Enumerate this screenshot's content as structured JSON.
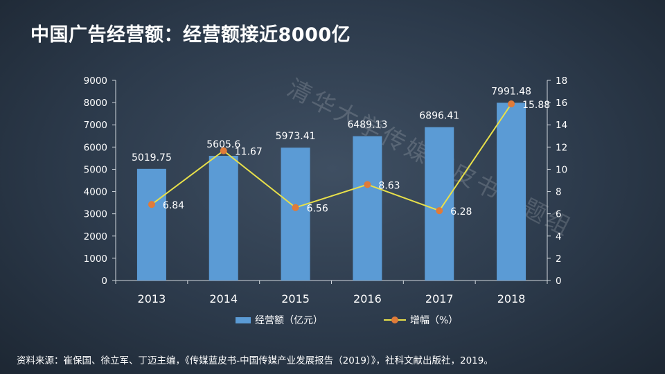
{
  "header": {
    "title": "中国广告经营额：经营额接近8000亿"
  },
  "watermark": "清华大学传媒蓝皮书课题组",
  "colors": {
    "bar": "#5b9bd5",
    "line": "#e8e04a",
    "marker": "#e07b39",
    "background": "#2c3a4b"
  },
  "chart_data": {
    "type": "bar",
    "categories": [
      "2013",
      "2014",
      "2015",
      "2016",
      "2017",
      "2018"
    ],
    "series": [
      {
        "name": "经营额（亿元）",
        "type": "bar",
        "axis": "left",
        "values": [
          5019.75,
          5605.6,
          5973.41,
          6489.13,
          6896.41,
          7991.48
        ],
        "labels": [
          "5019.75",
          "5605.6",
          "5973.41",
          "6489.13",
          "6896.41",
          "7991.48"
        ]
      },
      {
        "name": "增幅（%）",
        "type": "line",
        "axis": "right",
        "values": [
          6.84,
          11.67,
          6.56,
          8.63,
          6.28,
          15.88
        ],
        "labels": [
          "6.84",
          "11.67",
          "6.56",
          "8.63",
          "6.28",
          "15.88"
        ]
      }
    ],
    "y_left": {
      "ylim": [
        0,
        9000
      ],
      "ticks": [
        "0",
        "1000",
        "2000",
        "3000",
        "4000",
        "5000",
        "6000",
        "7000",
        "8000",
        "9000"
      ]
    },
    "y_right": {
      "ylim": [
        0,
        18
      ],
      "ticks": [
        "0",
        "2",
        "4",
        "6",
        "8",
        "10",
        "12",
        "14",
        "16",
        "18"
      ]
    },
    "legend_position": "bottom",
    "grid": false
  },
  "legend": {
    "bar_label": "经营额（亿元）",
    "line_label": "增幅（%）"
  },
  "footer": {
    "source": "资料来源：崔保国、徐立军、丁迈主编，《传媒蓝皮书-中国传媒产业发展报告（2019）》，社科文献出版社，2019。"
  }
}
